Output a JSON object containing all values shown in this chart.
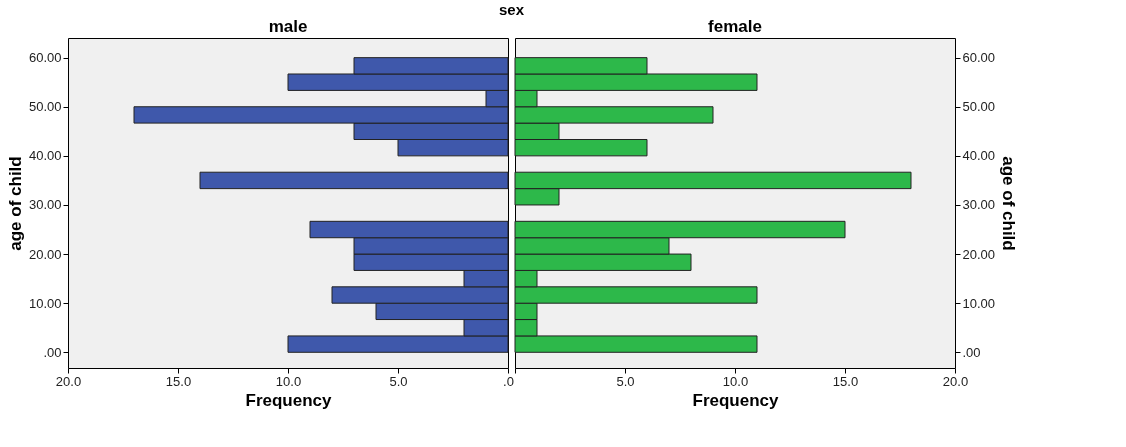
{
  "chart_data": [
    {
      "type": "histogram",
      "title": "sex",
      "subtitle": "male",
      "orientation": "horizontal",
      "xlabel": "Frequency",
      "ylabel": "age of child",
      "color": "#3f58ab",
      "grid": false,
      "bins": [
        0,
        3.33,
        6.67,
        10,
        13.33,
        16.67,
        20,
        23.33,
        26.67,
        30,
        33.33,
        36.67,
        40,
        43.33,
        46.67,
        50,
        53.33,
        56.67,
        60
      ],
      "values": [
        10,
        2,
        6,
        8,
        2,
        7,
        7,
        9,
        0,
        0,
        14,
        0,
        5,
        7,
        17,
        1,
        10,
        7
      ],
      "xlim": [
        20,
        0
      ],
      "xticks": [
        {
          "value": 20,
          "label": "20.0"
        },
        {
          "value": 15,
          "label": "15.0"
        },
        {
          "value": 10,
          "label": "10.0"
        },
        {
          "value": 5,
          "label": "5.0"
        },
        {
          "value": 0,
          "label": ".0"
        }
      ],
      "ylim": [
        -3.2,
        64
      ],
      "yticks": [
        {
          "value": 0,
          "label": ".00"
        },
        {
          "value": 10,
          "label": "10.00"
        },
        {
          "value": 20,
          "label": "20.00"
        },
        {
          "value": 30,
          "label": "30.00"
        },
        {
          "value": 40,
          "label": "40.00"
        },
        {
          "value": 50,
          "label": "50.00"
        },
        {
          "value": 60,
          "label": "60.00"
        }
      ]
    },
    {
      "type": "histogram",
      "subtitle": "female",
      "orientation": "horizontal",
      "xlabel": "Frequency",
      "ylabel": "age of child",
      "color": "#2db84a",
      "grid": false,
      "bins": [
        0,
        3.33,
        6.67,
        10,
        13.33,
        16.67,
        20,
        23.33,
        26.67,
        30,
        33.33,
        36.67,
        40,
        43.33,
        46.67,
        50,
        53.33,
        56.67,
        60
      ],
      "values": [
        11,
        1,
        1,
        11,
        1,
        8,
        7,
        15,
        0,
        2,
        18,
        0,
        6,
        2,
        9,
        1,
        11,
        6
      ],
      "xlim": [
        0,
        20
      ],
      "xticks": [
        {
          "value": 0,
          "label": null
        },
        {
          "value": 5,
          "label": "5.0"
        },
        {
          "value": 10,
          "label": "10.0"
        },
        {
          "value": 15,
          "label": "15.0"
        },
        {
          "value": 20,
          "label": "20.0"
        }
      ],
      "ylim": [
        -3.2,
        64
      ],
      "yticks": [
        {
          "value": 0,
          "label": ".00"
        },
        {
          "value": 10,
          "label": "10.00"
        },
        {
          "value": 20,
          "label": "20.00"
        },
        {
          "value": 30,
          "label": "30.00"
        },
        {
          "value": 40,
          "label": "40.00"
        },
        {
          "value": 50,
          "label": "50.00"
        },
        {
          "value": 60,
          "label": "60.00"
        }
      ]
    }
  ]
}
